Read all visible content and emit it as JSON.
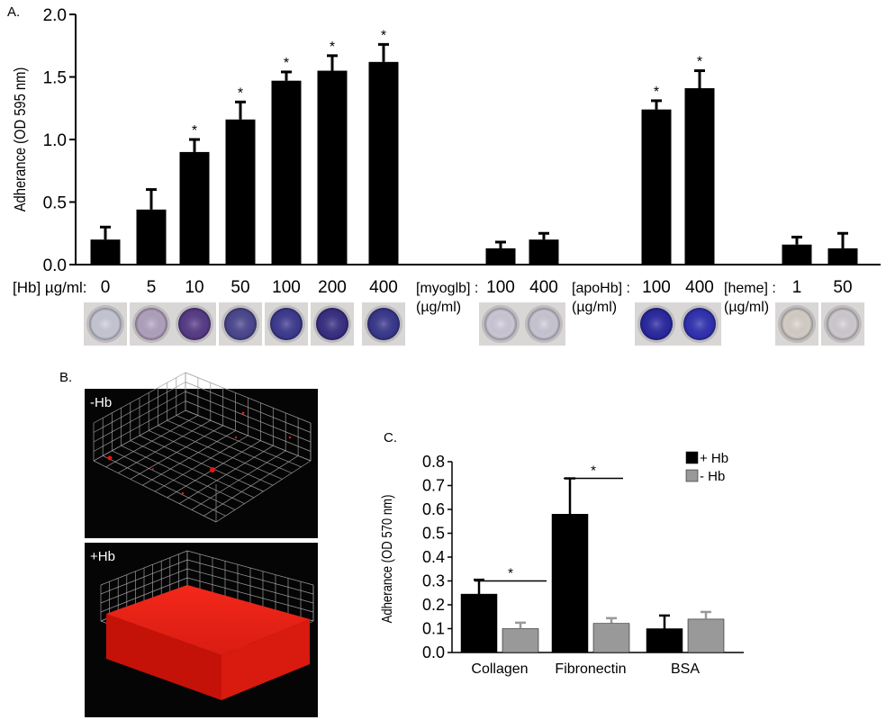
{
  "panels": {
    "a": {
      "label": "A."
    },
    "b": {
      "label": "B.",
      "top_label": "-Hb",
      "bottom_label": "+Hb"
    },
    "c": {
      "label": "C."
    }
  },
  "chart_data": [
    {
      "id": "A",
      "type": "bar",
      "ylabel": "Adherance (OD 595 nm)",
      "ylim": [
        0,
        2.0
      ],
      "yticks": [
        "0.0",
        "0.5",
        "1.0",
        "1.5",
        "2.0"
      ],
      "bar_color": "#000000",
      "groups": [
        {
          "label_line1": "[Hb] µg/ml:",
          "label_line2": "",
          "bars": [
            {
              "category": "0",
              "value": 0.2,
              "error": 0.1,
              "sig": false
            },
            {
              "category": "5",
              "value": 0.44,
              "error": 0.16,
              "sig": false
            },
            {
              "category": "10",
              "value": 0.9,
              "error": 0.1,
              "sig": true
            },
            {
              "category": "50",
              "value": 1.16,
              "error": 0.14,
              "sig": true
            },
            {
              "category": "100",
              "value": 1.47,
              "error": 0.07,
              "sig": true
            },
            {
              "category": "200",
              "value": 1.55,
              "error": 0.12,
              "sig": true
            },
            {
              "category": "400",
              "value": 1.62,
              "error": 0.14,
              "sig": true
            }
          ],
          "well_colors": [
            "#cfd0de",
            "#b8a8c6",
            "#5a3e8c",
            "#4e4a95",
            "#403d96",
            "#3a3188",
            "#3b3a92"
          ]
        },
        {
          "label_line1": "[myoglb] :",
          "label_line2": "(µg/ml)",
          "bars": [
            {
              "category": "100",
              "value": 0.13,
              "error": 0.05,
              "sig": false
            },
            {
              "category": "400",
              "value": 0.2,
              "error": 0.05,
              "sig": false
            }
          ],
          "well_colors": [
            "#d4d0df",
            "#d2cfdd"
          ]
        },
        {
          "label_line1": "[apoHb] :",
          "label_line2": "(µg/ml)",
          "bars": [
            {
              "category": "100",
              "value": 1.24,
              "error": 0.07,
              "sig": true
            },
            {
              "category": "400",
              "value": 1.41,
              "error": 0.14,
              "sig": true
            }
          ],
          "well_colors": [
            "#2c2aa6",
            "#3333b8"
          ]
        },
        {
          "label_line1": "[heme] :",
          "label_line2": "(µg/ml)",
          "bars": [
            {
              "category": "1",
              "value": 0.16,
              "error": 0.06,
              "sig": false
            },
            {
              "category": "50",
              "value": 0.13,
              "error": 0.12,
              "sig": false
            }
          ],
          "well_colors": [
            "#ddd7cf",
            "#d8d3d8"
          ]
        }
      ]
    },
    {
      "id": "C",
      "type": "bar",
      "ylabel": "Adherance (OD 570 nm)",
      "ylim": [
        0,
        0.8
      ],
      "yticks": [
        "0.0",
        "0.1",
        "0.2",
        "0.3",
        "0.4",
        "0.5",
        "0.6",
        "0.7",
        "0.8"
      ],
      "categories": [
        "Collagen",
        "Fibronectin",
        "BSA"
      ],
      "series": [
        {
          "name": "+ Hb",
          "color": "#000000",
          "values": [
            0.245,
            0.58,
            0.1
          ],
          "errors": [
            0.06,
            0.15,
            0.055
          ]
        },
        {
          "name": "- Hb",
          "color": "#999999",
          "values": [
            0.1,
            0.122,
            0.14
          ],
          "errors": [
            0.025,
            0.022,
            0.03
          ]
        }
      ],
      "significance": [
        {
          "category": "Collagen",
          "mark": "*"
        },
        {
          "category": "Fibronectin",
          "mark": "*"
        }
      ],
      "legend_position": "top-right"
    }
  ]
}
